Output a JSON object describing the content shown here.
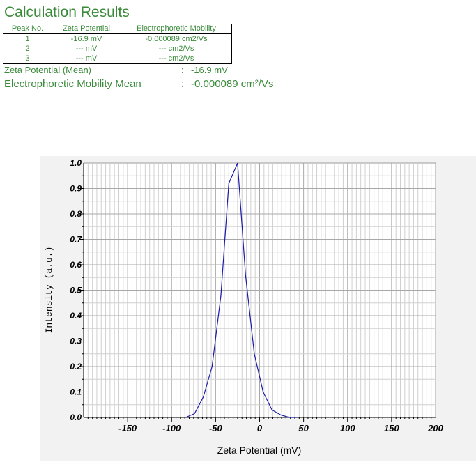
{
  "title": "Calculation Results",
  "table": {
    "headers": [
      "Peak No.",
      "Zeta Potential",
      "Electrophoretic Mobility"
    ],
    "rows": [
      [
        "1",
        "-16.9 mV",
        "-0.000089 cm2/Vs"
      ],
      [
        "2",
        "--- mV",
        "--- cm2/Vs"
      ],
      [
        "3",
        "--- mV",
        "--- cm2/Vs"
      ]
    ]
  },
  "summary": {
    "zeta_mean": {
      "label": "Zeta Potential (Mean)",
      "colon": ":",
      "value": "-16.9 mV"
    },
    "mobility_mean": {
      "label": "Electrophoretic Mobility Mean",
      "colon": ":",
      "value": "-0.000089 cm²/Vs"
    }
  },
  "chart_data": {
    "type": "line",
    "xlabel": "Zeta Potential (mV)",
    "ylabel": "Intensity (a.u.)",
    "xlim": [
      -200,
      200
    ],
    "ylim": [
      0,
      1
    ],
    "x_ticks": [
      -150,
      -100,
      -50,
      0,
      50,
      100,
      150,
      200
    ],
    "y_ticks": [
      "0.0",
      "0.1",
      "0.2",
      "0.3",
      "0.4",
      "0.5",
      "0.6",
      "0.7",
      "0.8",
      "0.9",
      "1.0"
    ],
    "grid": true,
    "line_color": "#1a1aaa",
    "series": [
      {
        "x": [
          -84,
          -74,
          -64,
          -54,
          -44,
          -35,
          -25,
          -16,
          -6,
          4,
          14,
          24,
          34,
          42
        ],
        "y": [
          0.0,
          0.015,
          0.08,
          0.2,
          0.48,
          0.92,
          1.0,
          0.56,
          0.25,
          0.1,
          0.03,
          0.01,
          0.0,
          0.0
        ]
      }
    ]
  }
}
